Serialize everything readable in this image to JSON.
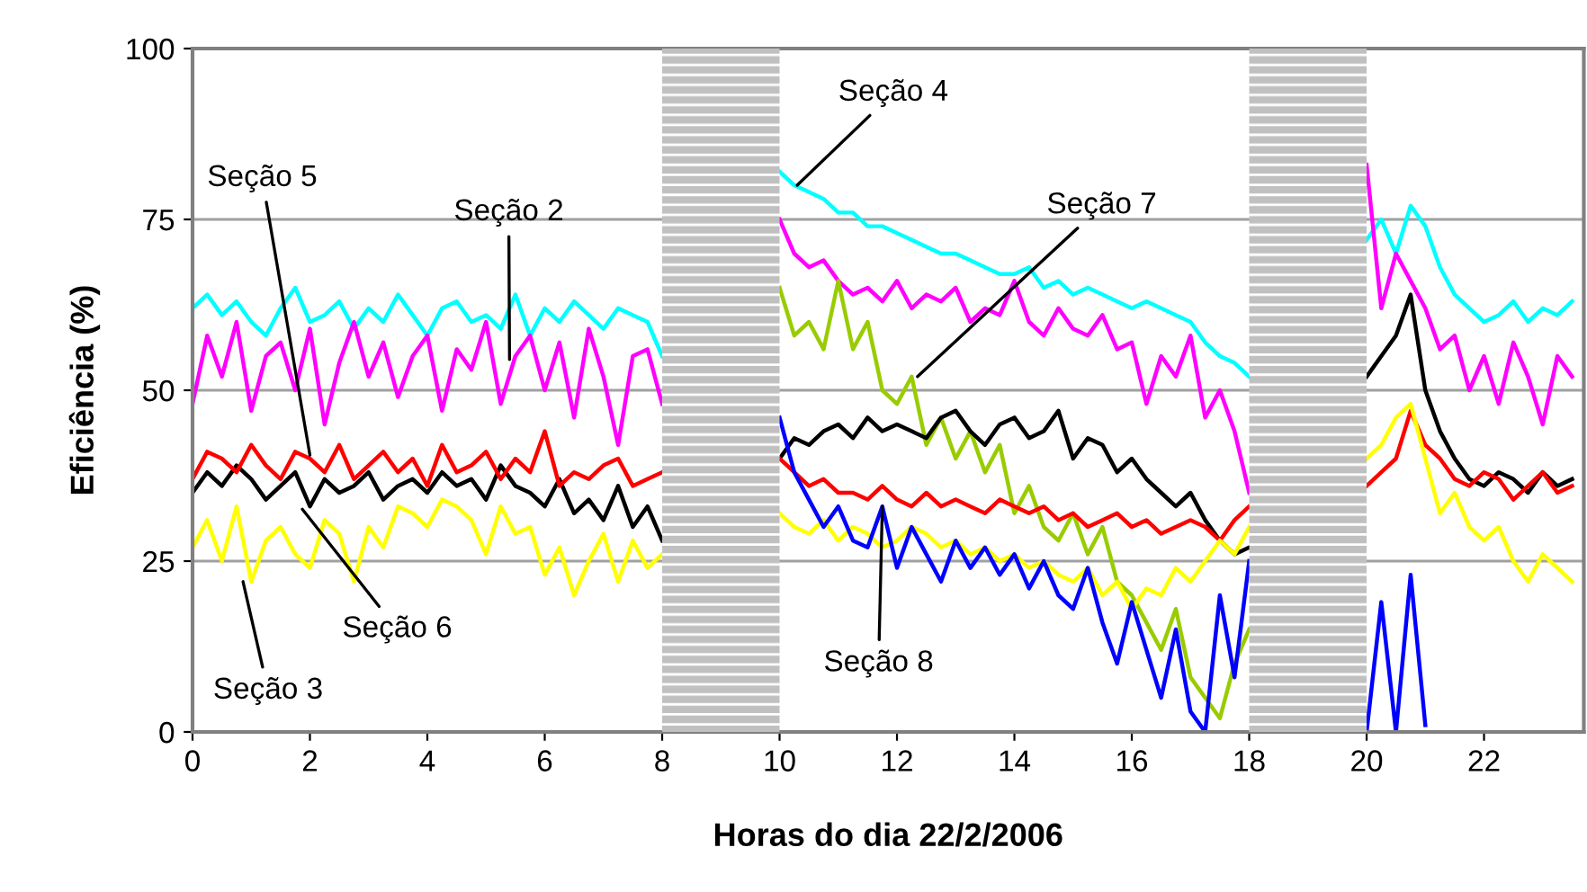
{
  "chart_data": {
    "type": "line",
    "xlabel": "Horas do dia 22/2/2006",
    "ylabel": "Eficiência (%)",
    "x": [
      0,
      0.25,
      0.5,
      0.75,
      1,
      1.25,
      1.5,
      1.75,
      2,
      2.25,
      2.5,
      2.75,
      3,
      3.25,
      3.5,
      3.75,
      4,
      4.25,
      4.5,
      4.75,
      5,
      5.25,
      5.5,
      5.75,
      6,
      6.25,
      6.5,
      6.75,
      7,
      7.25,
      7.5,
      7.75,
      8,
      9,
      10,
      10.25,
      10.5,
      10.75,
      11,
      11.25,
      11.5,
      11.75,
      12,
      12.25,
      12.5,
      12.75,
      13,
      13.25,
      13.5,
      13.75,
      14,
      14.25,
      14.5,
      14.75,
      15,
      15.25,
      15.5,
      15.75,
      16,
      16.25,
      16.5,
      16.75,
      17,
      17.25,
      17.5,
      17.75,
      18,
      19,
      20,
      20.25,
      20.5,
      20.75,
      21,
      21.25,
      21.5,
      21.75,
      22,
      22.25,
      22.5,
      22.75,
      23,
      23.25,
      23.5
    ],
    "series": [
      {
        "color": "#00ffff",
        "values": [
          62,
          64,
          61,
          63,
          60,
          58,
          62,
          65,
          60,
          61,
          63,
          59,
          62,
          60,
          64,
          61,
          58,
          62,
          63,
          60,
          61,
          59,
          64,
          58,
          62,
          60,
          63,
          61,
          59,
          62,
          61,
          60,
          55,
          null,
          82,
          80,
          79,
          78,
          76,
          76,
          74,
          74,
          73,
          72,
          71,
          70,
          70,
          69,
          68,
          67,
          67,
          68,
          65,
          66,
          64,
          65,
          64,
          63,
          62,
          63,
          62,
          61,
          60,
          57,
          55,
          54,
          52,
          null,
          72,
          75,
          70,
          77,
          74,
          68,
          64,
          62,
          60,
          61,
          63,
          60,
          62,
          61,
          63
        ]
      },
      {
        "color": "#ff00ff",
        "values": [
          48,
          58,
          52,
          60,
          47,
          55,
          57,
          50,
          59,
          45,
          54,
          60,
          52,
          57,
          49,
          55,
          58,
          47,
          56,
          53,
          60,
          48,
          55,
          58,
          50,
          57,
          46,
          59,
          52,
          42,
          55,
          56,
          48,
          null,
          75,
          70,
          68,
          69,
          66,
          64,
          65,
          63,
          66,
          62,
          64,
          63,
          65,
          60,
          62,
          61,
          66,
          60,
          58,
          62,
          59,
          58,
          61,
          56,
          57,
          48,
          55,
          52,
          58,
          46,
          50,
          44,
          35,
          null,
          83,
          62,
          70,
          66,
          62,
          56,
          58,
          50,
          55,
          48,
          57,
          52,
          45,
          55,
          52
        ]
      },
      {
        "color": "#99cc00",
        "values": [
          null,
          null,
          null,
          null,
          null,
          null,
          null,
          null,
          null,
          null,
          null,
          null,
          null,
          null,
          null,
          null,
          null,
          null,
          null,
          null,
          null,
          null,
          null,
          null,
          null,
          null,
          null,
          null,
          null,
          null,
          null,
          null,
          null,
          null,
          65,
          58,
          60,
          56,
          66,
          56,
          60,
          50,
          48,
          52,
          42,
          46,
          40,
          44,
          38,
          42,
          32,
          36,
          30,
          28,
          32,
          26,
          30,
          22,
          20,
          16,
          12,
          18,
          8,
          5,
          2,
          10,
          15,
          null,
          null,
          null,
          null,
          null,
          null,
          null,
          null,
          null,
          null,
          null,
          null,
          null,
          null,
          null,
          null
        ]
      },
      {
        "color": "#000000",
        "values": [
          35,
          38,
          36,
          39,
          37,
          34,
          36,
          38,
          33,
          37,
          35,
          36,
          38,
          34,
          36,
          37,
          35,
          38,
          36,
          37,
          34,
          39,
          36,
          35,
          33,
          37,
          32,
          34,
          31,
          36,
          30,
          33,
          28,
          null,
          40,
          43,
          42,
          44,
          45,
          43,
          46,
          44,
          45,
          44,
          43,
          46,
          47,
          44,
          42,
          45,
          46,
          43,
          44,
          47,
          40,
          43,
          42,
          38,
          40,
          37,
          35,
          33,
          35,
          31,
          28,
          26,
          27,
          null,
          52,
          55,
          58,
          64,
          50,
          44,
          40,
          37,
          36,
          38,
          37,
          35,
          38,
          36,
          37
        ]
      },
      {
        "color": "#ff0000",
        "values": [
          37,
          41,
          40,
          38,
          42,
          39,
          37,
          41,
          40,
          38,
          42,
          37,
          39,
          41,
          38,
          40,
          36,
          42,
          38,
          39,
          41,
          37,
          40,
          38,
          44,
          36,
          38,
          37,
          39,
          40,
          36,
          37,
          38,
          null,
          40,
          38,
          36,
          37,
          35,
          35,
          34,
          36,
          34,
          33,
          35,
          33,
          34,
          33,
          32,
          34,
          33,
          32,
          33,
          31,
          32,
          30,
          31,
          32,
          30,
          31,
          29,
          30,
          31,
          30,
          28,
          31,
          33,
          null,
          36,
          38,
          40,
          47,
          42,
          40,
          37,
          36,
          38,
          37,
          34,
          36,
          38,
          35,
          36
        ]
      },
      {
        "color": "#ffff00",
        "values": [
          27,
          31,
          25,
          33,
          22,
          28,
          30,
          26,
          24,
          31,
          29,
          22,
          30,
          27,
          33,
          32,
          30,
          34,
          33,
          31,
          26,
          33,
          29,
          30,
          23,
          27,
          20,
          25,
          29,
          22,
          28,
          24,
          26,
          null,
          32,
          30,
          29,
          31,
          28,
          30,
          29,
          27,
          28,
          30,
          29,
          27,
          28,
          26,
          27,
          25,
          26,
          24,
          25,
          23,
          22,
          24,
          20,
          22,
          18,
          21,
          20,
          24,
          22,
          25,
          28,
          26,
          30,
          null,
          40,
          42,
          46,
          48,
          40,
          32,
          35,
          30,
          28,
          30,
          25,
          22,
          26,
          24,
          22
        ]
      },
      {
        "color": "#0000ff",
        "values": [
          null,
          null,
          null,
          null,
          null,
          null,
          null,
          null,
          null,
          null,
          null,
          null,
          null,
          null,
          null,
          null,
          null,
          null,
          null,
          null,
          null,
          null,
          null,
          null,
          null,
          null,
          null,
          null,
          null,
          null,
          null,
          null,
          null,
          null,
          46,
          38,
          34,
          30,
          33,
          28,
          27,
          33,
          24,
          30,
          26,
          22,
          28,
          24,
          27,
          23,
          26,
          21,
          25,
          20,
          18,
          24,
          16,
          10,
          19,
          12,
          5,
          15,
          3,
          0,
          20,
          8,
          25,
          null,
          0,
          19,
          0,
          23,
          1,
          null,
          null,
          null,
          null,
          null,
          null,
          null,
          null,
          null,
          null
        ]
      }
    ],
    "xlim": [
      0,
      23.7
    ],
    "xticks": [
      0,
      2,
      4,
      6,
      8,
      10,
      12,
      14,
      16,
      18,
      20,
      22
    ],
    "ylim": [
      0,
      100
    ],
    "yticks": [
      0,
      25,
      50,
      75,
      100
    ],
    "grid": "y",
    "bands": [
      {
        "axis": "x",
        "from": 8,
        "to": 10,
        "color": "#c0c0c0"
      },
      {
        "axis": "x",
        "from": 18,
        "to": 20,
        "color": "#c0c0c0"
      }
    ],
    "annotations": [
      {
        "text": "Seção 5",
        "x": 2.0,
        "y": 40.5
      },
      {
        "text": "Seção 2",
        "x": 5.4,
        "y": 54.5
      },
      {
        "text": "Seção 6",
        "x": 1.87,
        "y": 32.6
      },
      {
        "text": "Seção 3",
        "x": 0.86,
        "y": 22
      },
      {
        "text": "Seção 4",
        "x": 10.3,
        "y": 80
      },
      {
        "text": "Seção 7",
        "x": 12.35,
        "y": 52
      },
      {
        "text": "Seção 8",
        "x": 11.75,
        "y": 33
      }
    ]
  }
}
